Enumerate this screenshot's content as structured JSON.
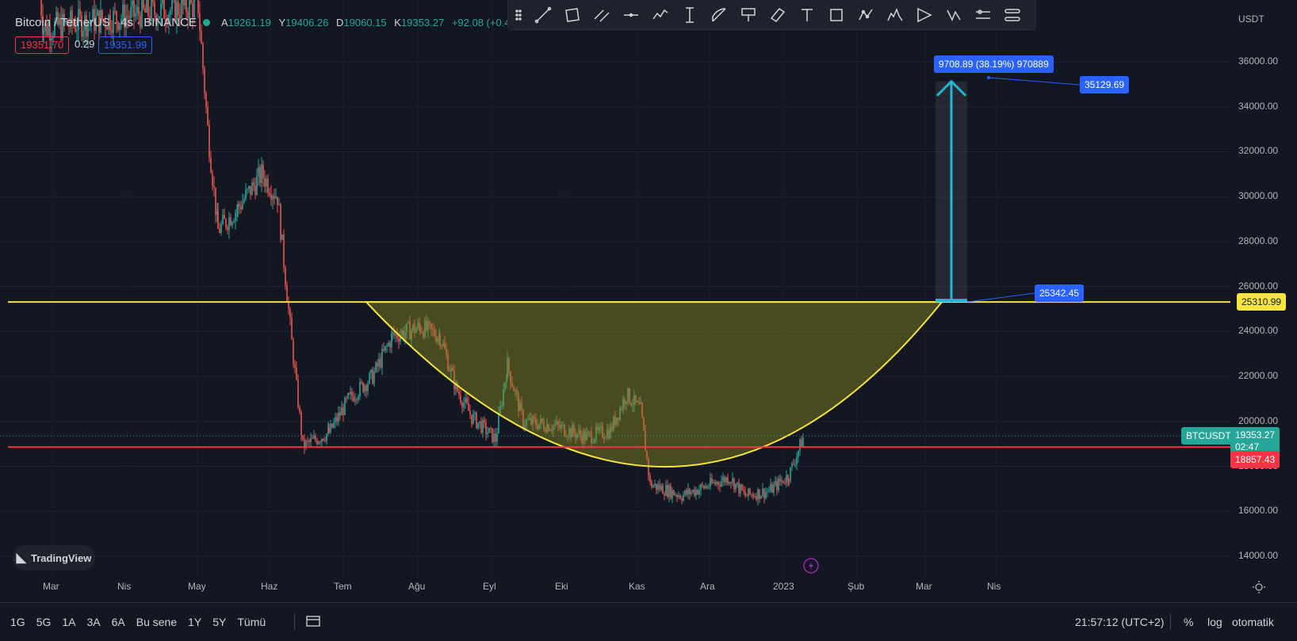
{
  "header": {
    "title": "Bitcoin / TetherUS · 4s · BINANCE",
    "ohlc": [
      {
        "key": "A",
        "value": "19261.19"
      },
      {
        "key": "Y",
        "value": "19406.26"
      },
      {
        "key": "D",
        "value": "19060.15"
      },
      {
        "key": "K",
        "value": "19353.27"
      }
    ],
    "change": "+92.08 (+0.4",
    "bid": "19351.70",
    "spread": "0.29",
    "ask": "19351.99"
  },
  "axis": {
    "currency": "USDT",
    "y_ticks": [
      "36000.00",
      "34000.00",
      "32000.00",
      "30000.00",
      "28000.00",
      "26000.00",
      "24000.00",
      "22000.00",
      "20000.00",
      "18000.00",
      "16000.00",
      "14000.00"
    ],
    "x_ticks": [
      "Mar",
      "Nis",
      "May",
      "Haz",
      "Tem",
      "Ağu",
      "Eyl",
      "Eki",
      "Kas",
      "Ara",
      "2023",
      "Şub",
      "Mar",
      "Nis"
    ]
  },
  "labels": {
    "resistance": "25310.99",
    "symbol": "BTCUSDT",
    "last_price": "19353.27",
    "countdown": "02:47",
    "support": "18857.43",
    "target_measure": "9708.89 (38.19%) 970889",
    "target_price": "35129.69",
    "base_price": "25342.45"
  },
  "bottom": {
    "ranges": [
      "1G",
      "5G",
      "1A",
      "3A",
      "6A",
      "Bu sene",
      "1Y",
      "5Y",
      "Tümü"
    ],
    "clock": "21:57:12 (UTC+2)",
    "percent": "%",
    "log": "log",
    "auto": "otomatik"
  },
  "logo": "TradingView",
  "colors": {
    "bg": "#131722",
    "resistance_line": "#f5e53c",
    "support_line": "#f23645",
    "cup_fill": "#8a8a1e",
    "target_arrow": "#22b8d1",
    "label_blue": "#2962ff",
    "up_candle": "#26a69a",
    "down_candle": "#ef5350"
  },
  "chart_data": {
    "type": "candlestick",
    "ylim": [
      13000,
      37500
    ],
    "y_scale": "linear",
    "grid": true,
    "series_close": [
      {
        "x": "Mar",
        "y": 40000
      },
      {
        "x": "May",
        "y": 38000
      },
      {
        "x": "May",
        "y": 30000
      },
      {
        "x": "Haz",
        "y": 29500
      },
      {
        "x": "Haz",
        "y": 30500
      },
      {
        "x": "Haz",
        "y": 22000
      },
      {
        "x": "Haz",
        "y": 19500
      },
      {
        "x": "Tem",
        "y": 19200
      },
      {
        "x": "Tem",
        "y": 21500
      },
      {
        "x": "Tem",
        "y": 23000
      },
      {
        "x": "Ağu",
        "y": 23500
      },
      {
        "x": "Ağu",
        "y": 24500
      },
      {
        "x": "Ağu",
        "y": 21500
      },
      {
        "x": "Eyl",
        "y": 19800
      },
      {
        "x": "Eyl",
        "y": 21800
      },
      {
        "x": "Eyl",
        "y": 19300
      },
      {
        "x": "Eki",
        "y": 19400
      },
      {
        "x": "Eki",
        "y": 19200
      },
      {
        "x": "Kas",
        "y": 20800
      },
      {
        "x": "Kas",
        "y": 16800
      },
      {
        "x": "Ara",
        "y": 17000
      },
      {
        "x": "Ara",
        "y": 16600
      },
      {
        "x": "2023",
        "y": 17200
      },
      {
        "x": "2023",
        "y": 19353
      }
    ]
  }
}
